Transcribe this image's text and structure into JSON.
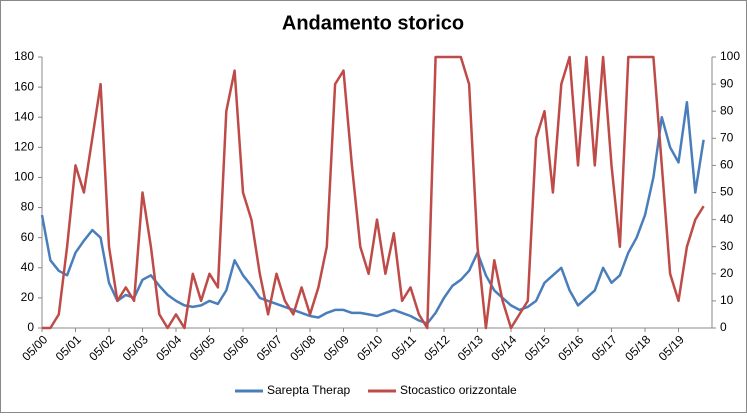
{
  "chart_data": {
    "type": "line",
    "title": "Andamento storico",
    "categories": [
      "05/00",
      null,
      null,
      null,
      "05/01",
      null,
      null,
      null,
      "05/02",
      null,
      null,
      null,
      "05/03",
      null,
      null,
      null,
      "05/04",
      null,
      null,
      null,
      "05/05",
      null,
      null,
      null,
      "05/06",
      null,
      null,
      null,
      "05/07",
      null,
      null,
      null,
      "05/08",
      null,
      null,
      null,
      "05/09",
      null,
      null,
      null,
      "05/10",
      null,
      null,
      null,
      "05/11",
      null,
      null,
      null,
      "05/12",
      null,
      null,
      null,
      "05/13",
      null,
      null,
      null,
      "05/14",
      null,
      null,
      null,
      "05/15",
      null,
      null,
      null,
      "05/16",
      null,
      null,
      null,
      "05/17",
      null,
      null,
      null,
      "05/18",
      null,
      null,
      null,
      "05/19",
      null,
      null,
      null
    ],
    "series": [
      {
        "name": "Sarepta Therap",
        "color": "#4a7ebb",
        "axis": "y",
        "values": [
          75,
          45,
          38,
          35,
          50,
          58,
          65,
          60,
          30,
          18,
          22,
          20,
          32,
          35,
          28,
          22,
          18,
          15,
          14,
          15,
          18,
          16,
          25,
          45,
          35,
          28,
          20,
          18,
          16,
          14,
          12,
          10,
          8,
          7,
          10,
          12,
          12,
          10,
          10,
          9,
          8,
          10,
          12,
          10,
          8,
          5,
          3,
          10,
          20,
          28,
          32,
          38,
          50,
          35,
          25,
          20,
          15,
          12,
          14,
          18,
          30,
          35,
          40,
          25,
          15,
          20,
          25,
          40,
          30,
          35,
          50,
          60,
          75,
          100,
          140,
          120,
          110,
          150,
          90,
          125
        ]
      },
      {
        "name": "Stocastico orizzontale",
        "color": "#be4b48",
        "axis": "y2",
        "values": [
          0,
          0,
          5,
          30,
          60,
          50,
          70,
          90,
          30,
          10,
          15,
          10,
          50,
          30,
          5,
          0,
          5,
          0,
          20,
          10,
          20,
          15,
          80,
          95,
          50,
          40,
          20,
          5,
          20,
          10,
          5,
          15,
          5,
          15,
          30,
          90,
          95,
          60,
          30,
          20,
          40,
          20,
          35,
          10,
          15,
          5,
          0,
          100,
          100,
          100,
          100,
          90,
          30,
          0,
          25,
          10,
          0,
          5,
          10,
          70,
          80,
          50,
          90,
          100,
          60,
          100,
          60,
          100,
          60,
          30,
          100,
          100,
          100,
          100,
          60,
          20,
          10,
          30,
          40,
          45
        ]
      }
    ],
    "ylim": [
      0,
      180
    ],
    "yticks": [
      0,
      20,
      40,
      60,
      80,
      100,
      120,
      140,
      160,
      180
    ],
    "y2lim": [
      0,
      100
    ],
    "y2ticks": [
      0,
      10,
      20,
      30,
      40,
      50,
      60,
      70,
      80,
      90,
      100
    ],
    "grid": false,
    "legend": "bottom"
  }
}
